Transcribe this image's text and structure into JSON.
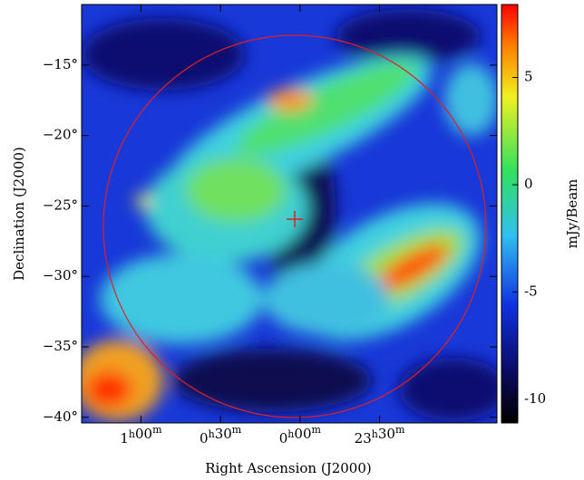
{
  "chart_data": {
    "type": "image",
    "xlabel": "Right Ascension (J2000)",
    "ylabel": "Declination (J2000)",
    "colorbar_label": "mJy/Beam",
    "xlim": [
      1.373,
      -1.238
    ],
    "xticks": [
      {
        "value": 1,
        "label": "1h00m"
      },
      {
        "value": 0.5,
        "label": "0h30m"
      },
      {
        "value": 0,
        "label": "0h00m"
      },
      {
        "value": -0.5,
        "label": "23h30m"
      }
    ],
    "ylim": [
      -40.4,
      -10.7
    ],
    "yticks": [
      {
        "value": -15,
        "label": "−15°"
      },
      {
        "value": -20,
        "label": "−20°"
      },
      {
        "value": -25,
        "label": "−25°"
      },
      {
        "value": -30,
        "label": "−30°"
      },
      {
        "value": -35,
        "label": "−35°"
      },
      {
        "value": -40,
        "label": "−40°"
      }
    ],
    "clim": [
      -11.1,
      8.4
    ],
    "cticks": [
      5,
      0,
      -5,
      -10
    ]
  }
}
